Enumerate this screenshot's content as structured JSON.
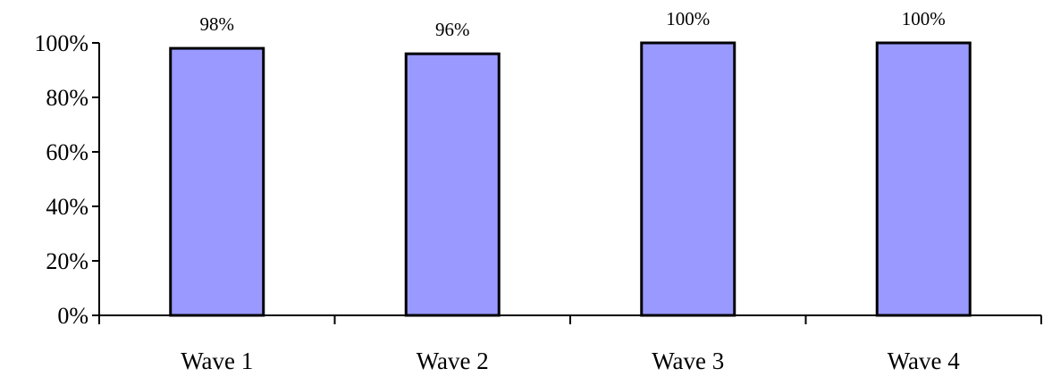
{
  "chart_data": {
    "type": "bar",
    "categories": [
      "Wave 1",
      "Wave 2",
      "Wave 3",
      "Wave 4"
    ],
    "values": [
      98,
      96,
      100,
      100
    ],
    "data_labels": [
      "98%",
      "96%",
      "100%",
      "100%"
    ],
    "title": "",
    "xlabel": "",
    "ylabel": "",
    "ylim": [
      0,
      100
    ],
    "yticks": [
      0,
      20,
      40,
      60,
      80,
      100
    ],
    "ytick_labels": [
      "0%",
      "20%",
      "40%",
      "60%",
      "80%",
      "100%"
    ],
    "grid": false,
    "legend": "none",
    "colors": {
      "bar_fill": "#9999ff",
      "bar_stroke": "#000000",
      "axis": "#000000"
    }
  }
}
